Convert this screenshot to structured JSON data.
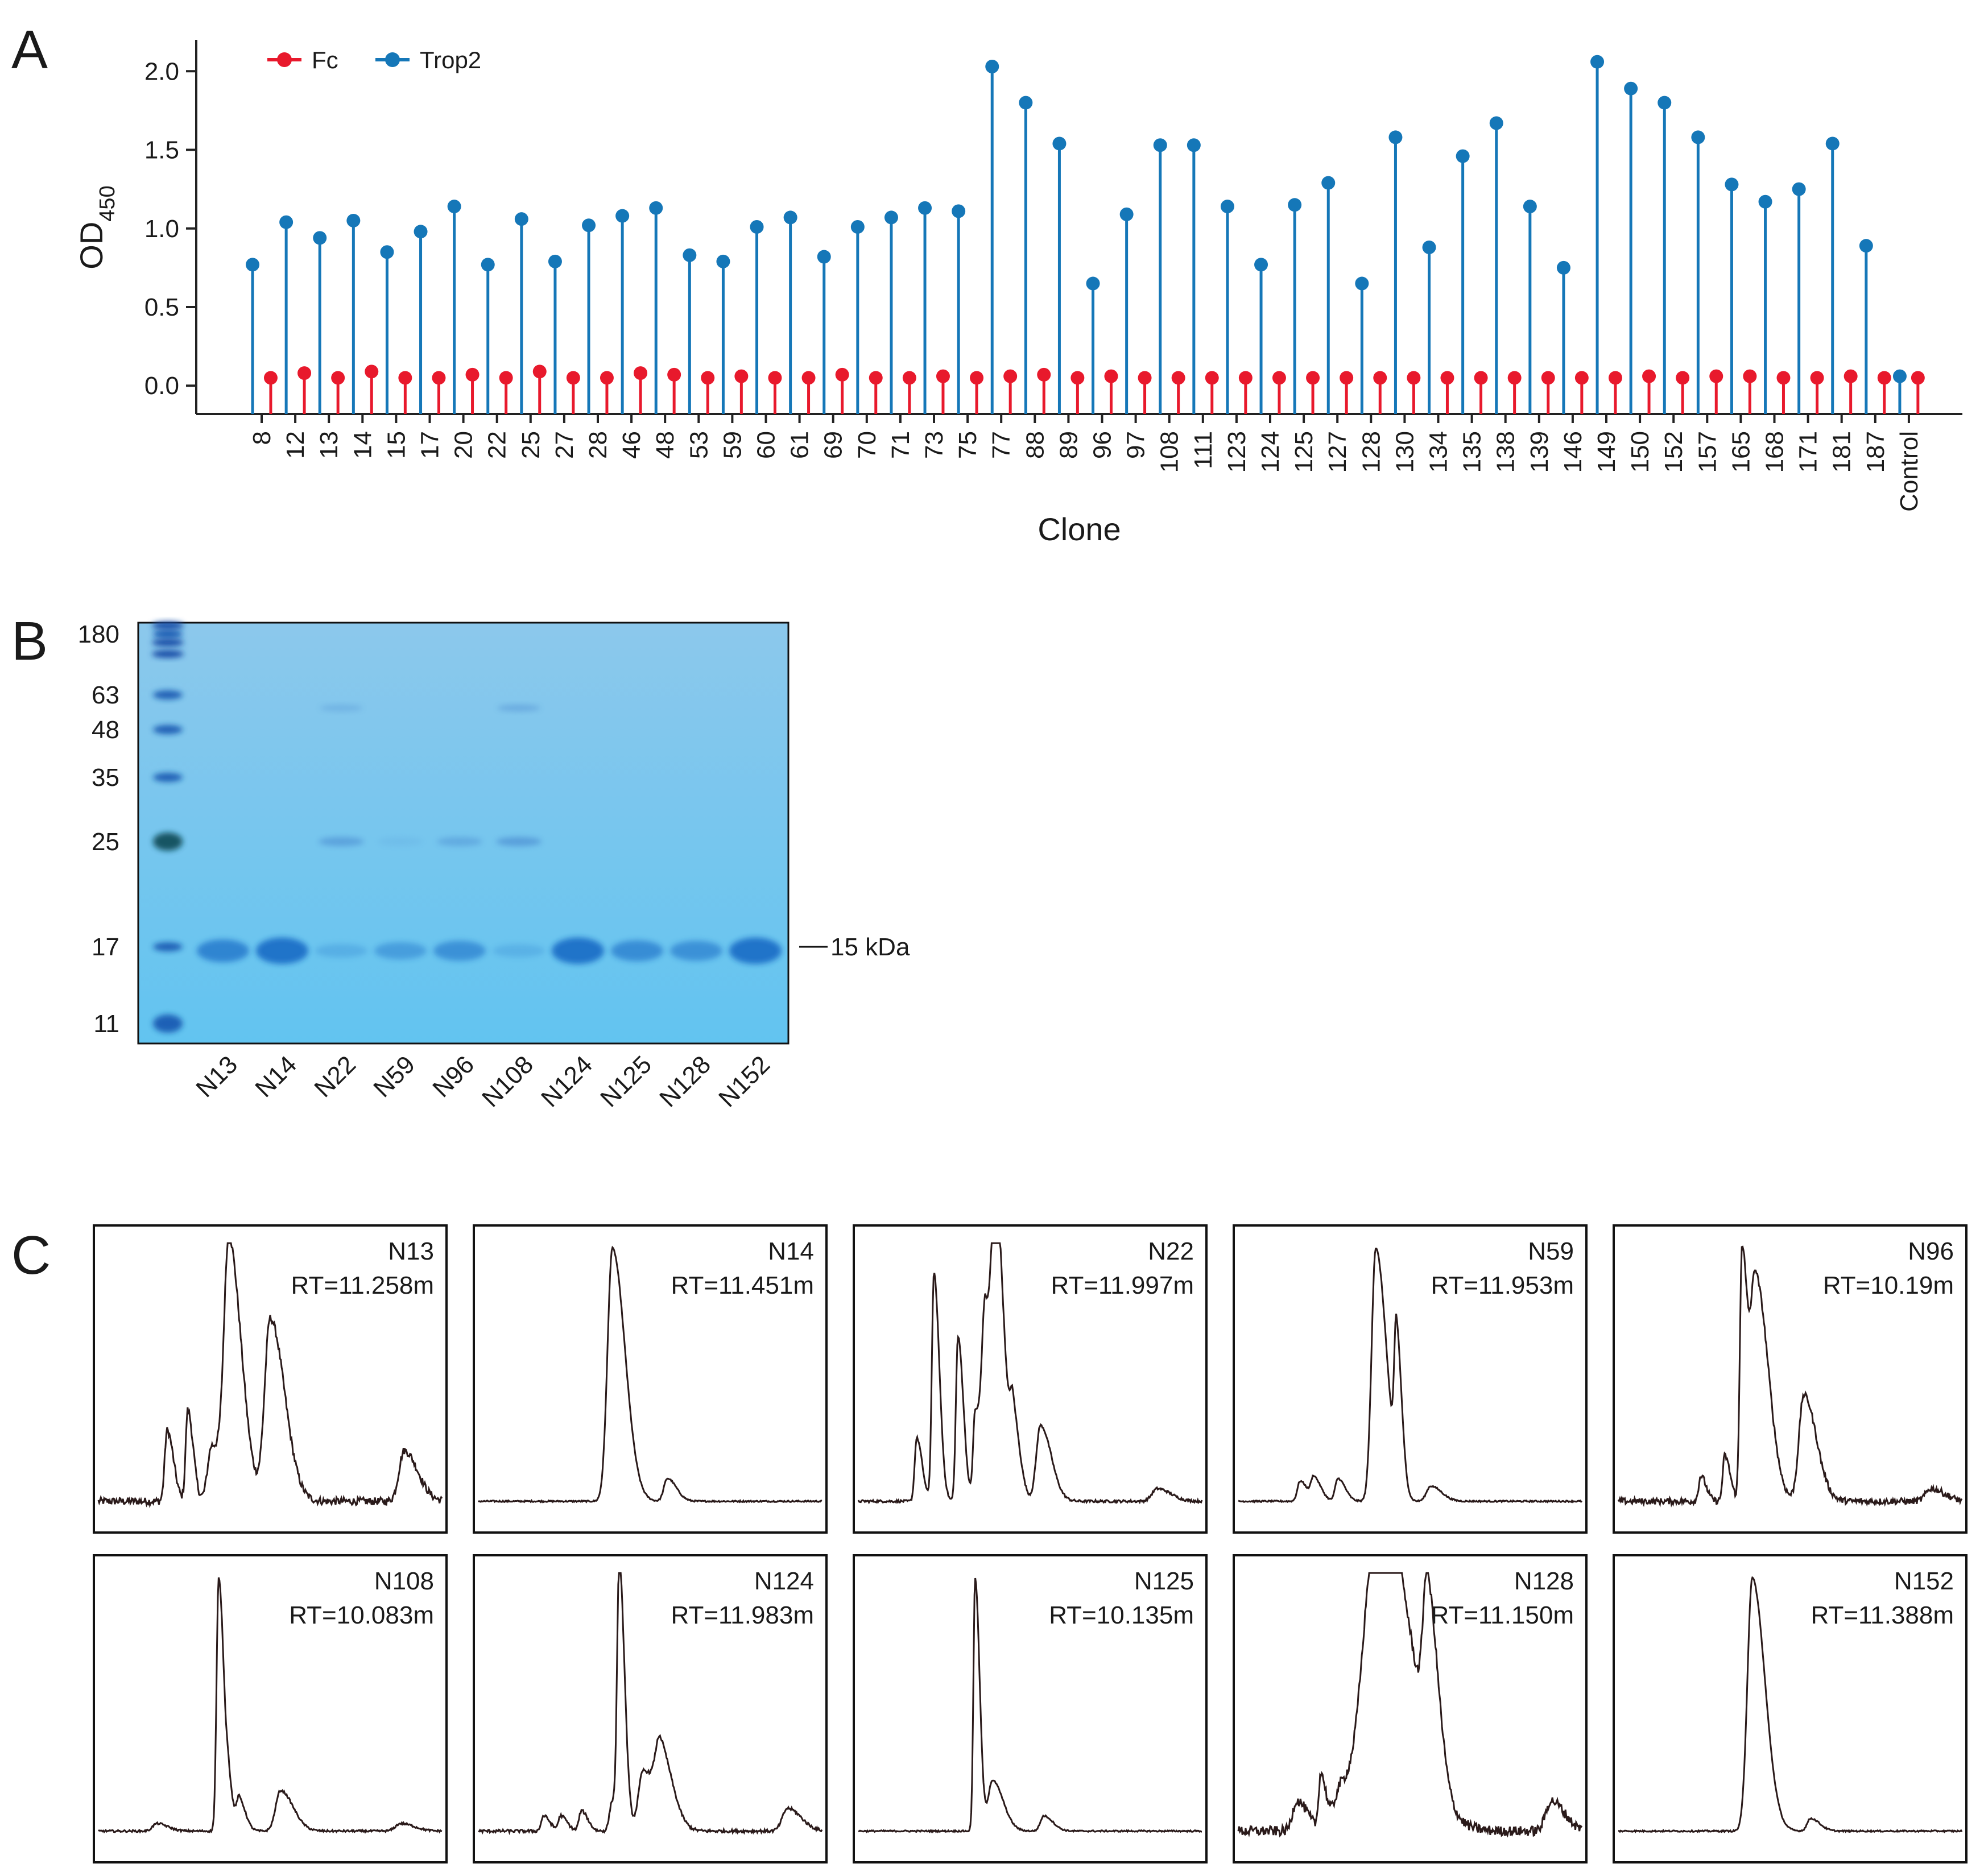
{
  "figure": {
    "panels": [
      "A",
      "B",
      "C"
    ]
  },
  "chart_data": [
    {
      "panel": "A",
      "type": "lollipop",
      "xlabel": "Clone",
      "ylabel": "OD",
      "ylabel_subscript": "450",
      "ylim": [
        -0.18,
        2.2
      ],
      "yticks": [
        "0.0",
        "0.5",
        "1.0",
        "1.5",
        "2.0"
      ],
      "ytick_values": [
        0.0,
        0.5,
        1.0,
        1.5,
        2.0
      ],
      "categories": [
        "8",
        "12",
        "13",
        "14",
        "15",
        "17",
        "20",
        "22",
        "25",
        "27",
        "28",
        "46",
        "48",
        "53",
        "59",
        "60",
        "61",
        "69",
        "70",
        "71",
        "73",
        "75",
        "77",
        "88",
        "89",
        "96",
        "97",
        "108",
        "111",
        "123",
        "124",
        "125",
        "127",
        "128",
        "130",
        "134",
        "135",
        "138",
        "139",
        "146",
        "149",
        "150",
        "152",
        "157",
        "165",
        "168",
        "171",
        "181",
        "187",
        "Control"
      ],
      "series": [
        {
          "name": "Fc",
          "color": "#e8192c",
          "values": [
            0.05,
            0.08,
            0.05,
            0.09,
            0.05,
            0.05,
            0.07,
            0.05,
            0.09,
            0.05,
            0.05,
            0.08,
            0.07,
            0.05,
            0.06,
            0.05,
            0.05,
            0.07,
            0.05,
            0.05,
            0.06,
            0.05,
            0.06,
            0.07,
            0.05,
            0.06,
            0.05,
            0.05,
            0.05,
            0.05,
            0.05,
            0.05,
            0.05,
            0.05,
            0.05,
            0.05,
            0.05,
            0.05,
            0.05,
            0.05,
            0.05,
            0.06,
            0.05,
            0.06,
            0.06,
            0.05,
            0.05,
            0.06,
            0.05,
            0.05
          ]
        },
        {
          "name": "Trop2",
          "color": "#1577b8",
          "values": [
            0.77,
            1.04,
            0.94,
            1.05,
            0.85,
            0.98,
            1.14,
            0.77,
            1.06,
            0.79,
            1.02,
            1.08,
            1.13,
            0.83,
            0.79,
            1.01,
            1.07,
            0.82,
            1.01,
            1.07,
            1.13,
            1.11,
            2.03,
            1.8,
            1.54,
            0.65,
            1.09,
            1.53,
            1.53,
            1.14,
            0.77,
            1.15,
            1.29,
            0.65,
            1.58,
            0.88,
            1.46,
            1.67,
            1.14,
            0.75,
            2.06,
            1.89,
            1.8,
            1.58,
            1.28,
            1.17,
            1.25,
            1.54,
            0.89,
            0.06
          ]
        }
      ]
    },
    {
      "panel": "B",
      "type": "gel",
      "ladder_marks": [
        "180",
        "63",
        "48",
        "35",
        "25",
        "17",
        "11"
      ],
      "ladder_kda": [
        180,
        63,
        48,
        35,
        25,
        17,
        11
      ],
      "lanes": [
        "N13",
        "N14",
        "N22",
        "N59",
        "N96",
        "N108",
        "N124",
        "N125",
        "N128",
        "N152"
      ],
      "band_15kDa_intensity": [
        0.75,
        0.95,
        0.25,
        0.45,
        0.6,
        0.22,
        0.95,
        0.65,
        0.6,
        0.95
      ],
      "band_25kDa_intensity": [
        0,
        0,
        0.45,
        0.1,
        0.35,
        0.5,
        0,
        0,
        0,
        0
      ],
      "band_63kDa_intensity": [
        0,
        0,
        0.25,
        0,
        0,
        0.35,
        0,
        0,
        0,
        0
      ],
      "annotation": "15 kDa",
      "annotation_kda": 15
    },
    {
      "panel": "C",
      "type": "line",
      "chromatograms": [
        {
          "name": "N13",
          "rt": "RT=11.258m",
          "noise": 0.03,
          "peaks": [
            [
              0.2,
              0.28,
              0.007
            ],
            [
              0.26,
              0.36,
              0.006
            ],
            [
              0.33,
              0.22,
              0.012
            ],
            [
              0.38,
              1.0,
              0.014
            ],
            [
              0.5,
              0.72,
              0.016
            ],
            [
              0.89,
              0.2,
              0.015
            ]
          ]
        },
        {
          "name": "N14",
          "rt": "RT=11.451m",
          "noise": 0.006,
          "peaks": [
            [
              0.39,
              1.0,
              0.014
            ],
            [
              0.55,
              0.09,
              0.01
            ]
          ]
        },
        {
          "name": "N22",
          "rt": "RT=11.997m",
          "noise": 0.01,
          "peaks": [
            [
              0.17,
              0.25,
              0.006
            ],
            [
              0.22,
              0.9,
              0.006
            ],
            [
              0.29,
              0.65,
              0.006
            ],
            [
              0.34,
              0.35,
              0.006
            ],
            [
              0.37,
              0.75,
              0.01
            ],
            [
              0.4,
              0.95,
              0.01
            ],
            [
              0.45,
              0.28,
              0.008
            ],
            [
              0.53,
              0.3,
              0.012
            ],
            [
              0.87,
              0.05,
              0.015
            ]
          ]
        },
        {
          "name": "N59",
          "rt": "RT=11.953m",
          "noise": 0.006,
          "peaks": [
            [
              0.18,
              0.08,
              0.008
            ],
            [
              0.22,
              0.09,
              0.008
            ],
            [
              0.29,
              0.09,
              0.008
            ],
            [
              0.4,
              1.0,
              0.012
            ],
            [
              0.46,
              0.58,
              0.006
            ],
            [
              0.56,
              0.06,
              0.012
            ]
          ]
        },
        {
          "name": "N96",
          "rt": "RT=10.19m",
          "noise": 0.025,
          "peaks": [
            [
              0.24,
              0.1,
              0.006
            ],
            [
              0.31,
              0.18,
              0.006
            ],
            [
              0.36,
              1.0,
              0.006
            ],
            [
              0.4,
              0.88,
              0.014
            ],
            [
              0.54,
              0.42,
              0.014
            ],
            [
              0.91,
              0.05,
              0.015
            ]
          ]
        },
        {
          "name": "N108",
          "rt": "RT=10.083m",
          "noise": 0.008,
          "peaks": [
            [
              0.17,
              0.03,
              0.012
            ],
            [
              0.35,
              1.0,
              0.006
            ],
            [
              0.38,
              0.12,
              0.006
            ],
            [
              0.41,
              0.12,
              0.007
            ],
            [
              0.53,
              0.16,
              0.014
            ],
            [
              0.88,
              0.03,
              0.015
            ]
          ]
        },
        {
          "name": "N124",
          "rt": "RT=11.983m",
          "noise": 0.012,
          "peaks": [
            [
              0.19,
              0.06,
              0.007
            ],
            [
              0.24,
              0.06,
              0.007
            ],
            [
              0.3,
              0.08,
              0.007
            ],
            [
              0.39,
              0.12,
              0.008
            ],
            [
              0.41,
              1.0,
              0.006
            ],
            [
              0.48,
              0.24,
              0.014
            ],
            [
              0.53,
              0.28,
              0.014
            ],
            [
              0.9,
              0.09,
              0.015
            ]
          ]
        },
        {
          "name": "N125",
          "rt": "RT=10.135m",
          "noise": 0.006,
          "peaks": [
            [
              0.34,
              1.0,
              0.005
            ],
            [
              0.39,
              0.2,
              0.012
            ],
            [
              0.54,
              0.06,
              0.01
            ]
          ]
        },
        {
          "name": "N128",
          "rt": "RT=11.150m",
          "noise": 0.04,
          "peaks": [
            [
              0.17,
              0.12,
              0.012
            ],
            [
              0.24,
              0.22,
              0.006
            ],
            [
              0.3,
              0.18,
              0.02
            ],
            [
              0.38,
              0.48,
              0.03
            ],
            [
              0.42,
              0.95,
              0.035
            ],
            [
              0.55,
              0.65,
              0.012
            ],
            [
              0.91,
              0.12,
              0.015
            ]
          ]
        },
        {
          "name": "N152",
          "rt": "RT=11.388m",
          "noise": 0.006,
          "peaks": [
            [
              0.39,
              1.0,
              0.014
            ],
            [
              0.56,
              0.05,
              0.01
            ]
          ]
        }
      ]
    }
  ]
}
